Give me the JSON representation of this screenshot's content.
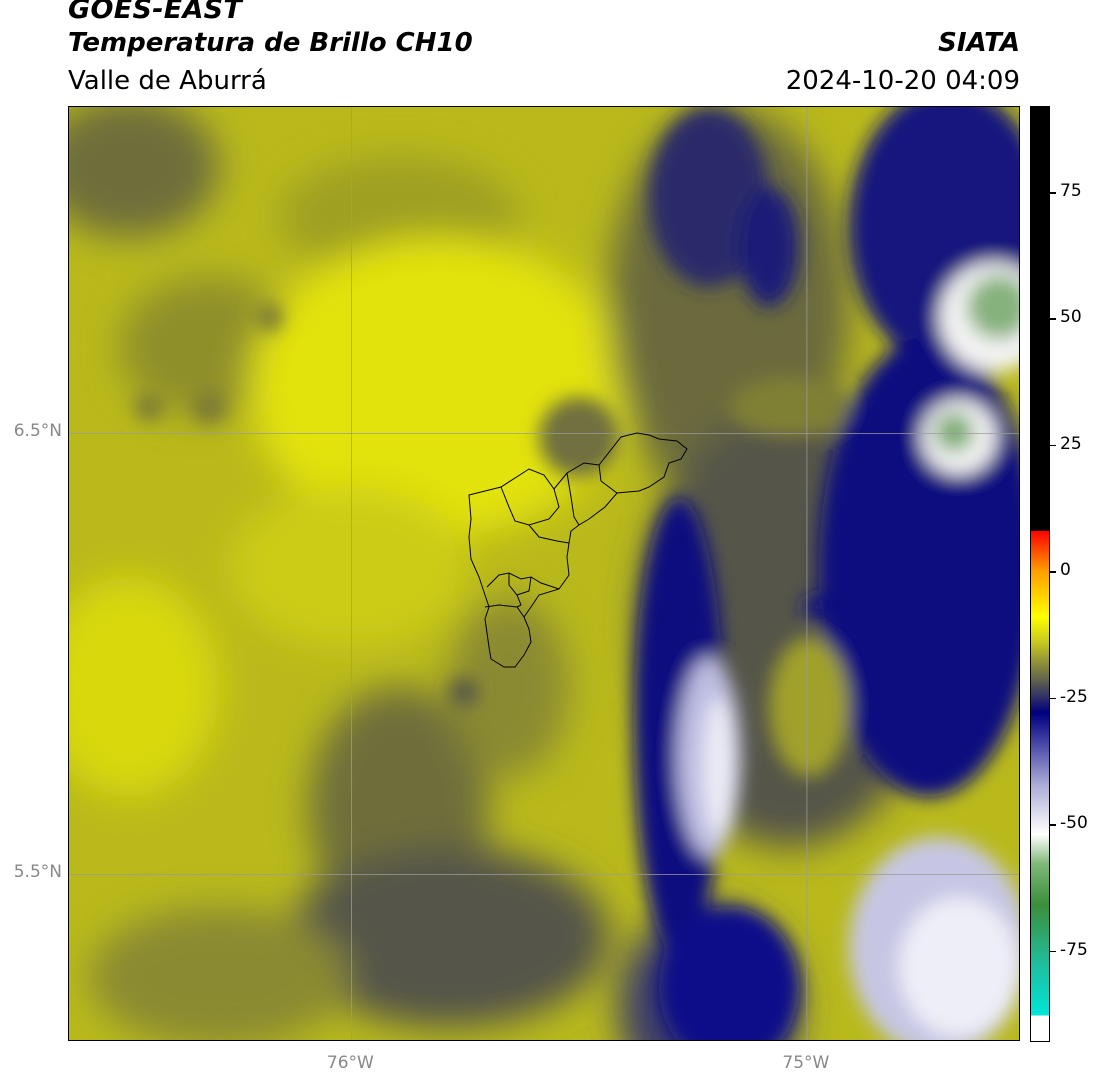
{
  "header": {
    "satellite": "GOES-EAST",
    "product": "Temperatura de Brillo CH10",
    "region": "Valle de Aburrá",
    "organization": "SIATA",
    "timestamp": "2024-10-20 04:09"
  },
  "map": {
    "lat_labels": [
      {
        "value": 6.5,
        "text": "6.5°N"
      },
      {
        "value": 5.5,
        "text": "5.5°N"
      }
    ],
    "lon_labels": [
      {
        "value": -76.0,
        "text": "76°W"
      },
      {
        "value": -75.0,
        "text": "75°W"
      }
    ],
    "extent": {
      "lon_min": -76.62,
      "lon_max": -74.53,
      "lat_min": 5.12,
      "lat_max": 7.24
    },
    "gridline_color": "#9a9a9a",
    "boundary_color": "#000000"
  },
  "colorbar": {
    "range": [
      -93,
      92
    ],
    "tick_labels": [
      {
        "value": 75,
        "text": "75"
      },
      {
        "value": 50,
        "text": "50"
      },
      {
        "value": 25,
        "text": "25"
      },
      {
        "value": 0,
        "text": "0"
      },
      {
        "value": -25,
        "text": "-25"
      },
      {
        "value": -50,
        "text": "-50"
      },
      {
        "value": -75,
        "text": "-75"
      }
    ],
    "stops": [
      {
        "value": -93,
        "color": "#ffffff"
      },
      {
        "value": -88,
        "color": "#ffffff"
      },
      {
        "value": -87.9,
        "color": "#00e5d8"
      },
      {
        "value": -78,
        "color": "#1fbfa0"
      },
      {
        "value": -66,
        "color": "#3a8f3a"
      },
      {
        "value": -58,
        "color": "#7fb87a"
      },
      {
        "value": -52,
        "color": "#ffffff"
      },
      {
        "value": -42,
        "color": "#a9a9d6"
      },
      {
        "value": -33,
        "color": "#3a3aa0"
      },
      {
        "value": -28,
        "color": "#000080"
      },
      {
        "value": -22,
        "color": "#5a5a50"
      },
      {
        "value": -14,
        "color": "#c8c820"
      },
      {
        "value": -9,
        "color": "#ffff00"
      },
      {
        "value": 0,
        "color": "#ffa000"
      },
      {
        "value": 8,
        "color": "#ff0000"
      },
      {
        "value": 8.1,
        "color": "#000000"
      },
      {
        "value": 92,
        "color": "#000000"
      }
    ]
  }
}
